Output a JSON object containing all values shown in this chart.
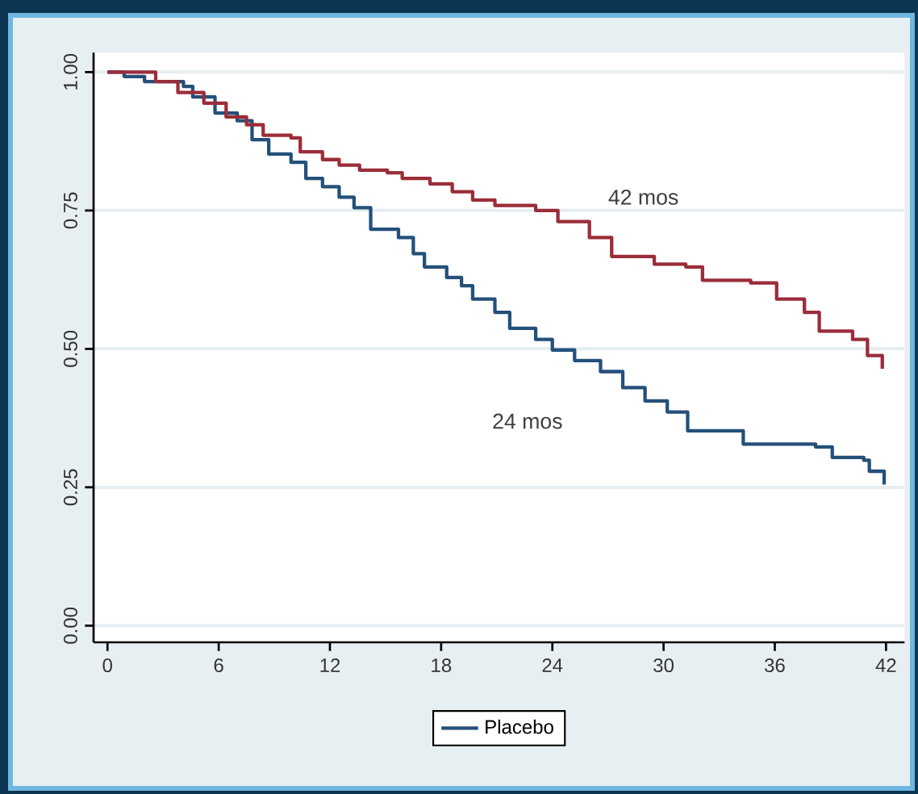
{
  "chart_data": {
    "type": "step",
    "xlim": [
      -0.75,
      43
    ],
    "ylim": [
      -0.03,
      1.035
    ],
    "xticks": [
      0,
      6,
      12,
      18,
      24,
      30,
      36,
      42
    ],
    "yticks": [
      {
        "value": 0,
        "label": "0.00"
      },
      {
        "value": 0.25,
        "label": "0.25"
      },
      {
        "value": 0.5,
        "label": "0.50"
      },
      {
        "value": 0.75,
        "label": "0.75"
      },
      {
        "value": 1,
        "label": "1.00"
      }
    ],
    "grid": "y",
    "legend": "bottom",
    "line_style": "solid",
    "marker": "none",
    "annotations": [
      "42 mos",
      "24 mos"
    ],
    "series": [
      {
        "name": "Placebo",
        "color": "#24507a",
        "x": [
          0,
          0.9,
          2.0,
          4.1,
          4.6,
          5.8,
          7.0,
          7.8,
          8.7,
          9.9,
          10.7,
          11.6,
          12.5,
          13.3,
          14.2,
          15.7,
          16.5,
          17.1,
          18.3,
          19.1,
          19.7,
          20.9,
          21.7,
          23.1,
          24.0,
          25.2,
          26.6,
          27.8,
          29.0,
          30.2,
          31.3,
          33.9,
          34.3,
          38.2,
          39.1,
          40.8,
          41.1,
          41.8,
          41.9
        ],
        "values": [
          1.0,
          0.992,
          0.983,
          0.974,
          0.955,
          0.926,
          0.912,
          0.878,
          0.852,
          0.837,
          0.808,
          0.793,
          0.774,
          0.755,
          0.716,
          0.701,
          0.672,
          0.648,
          0.629,
          0.614,
          0.59,
          0.566,
          0.537,
          0.517,
          0.498,
          0.479,
          0.459,
          0.43,
          0.406,
          0.386,
          0.352,
          0.352,
          0.328,
          0.323,
          0.304,
          0.299,
          0.279,
          0.279,
          0.255
        ]
      },
      {
        "color": "#9b2d3a",
        "x": [
          0,
          2.0,
          2.6,
          3.8,
          5.2,
          6.4,
          7.5,
          8.4,
          9.9,
          10.4,
          11.6,
          12.5,
          13.6,
          15.1,
          15.9,
          17.4,
          18.6,
          19.7,
          20.9,
          23.1,
          24.3,
          26.0,
          27.2,
          29.5,
          31.2,
          32.1,
          34.7,
          36.1,
          37.6,
          38.4,
          40.2,
          41.0,
          41.8
        ],
        "values": [
          1.0,
          1.0,
          0.983,
          0.963,
          0.944,
          0.919,
          0.905,
          0.886,
          0.881,
          0.856,
          0.842,
          0.832,
          0.823,
          0.818,
          0.808,
          0.798,
          0.784,
          0.769,
          0.759,
          0.75,
          0.73,
          0.701,
          0.667,
          0.653,
          0.648,
          0.624,
          0.619,
          0.59,
          0.566,
          0.532,
          0.517,
          0.488,
          0.464
        ]
      }
    ]
  }
}
